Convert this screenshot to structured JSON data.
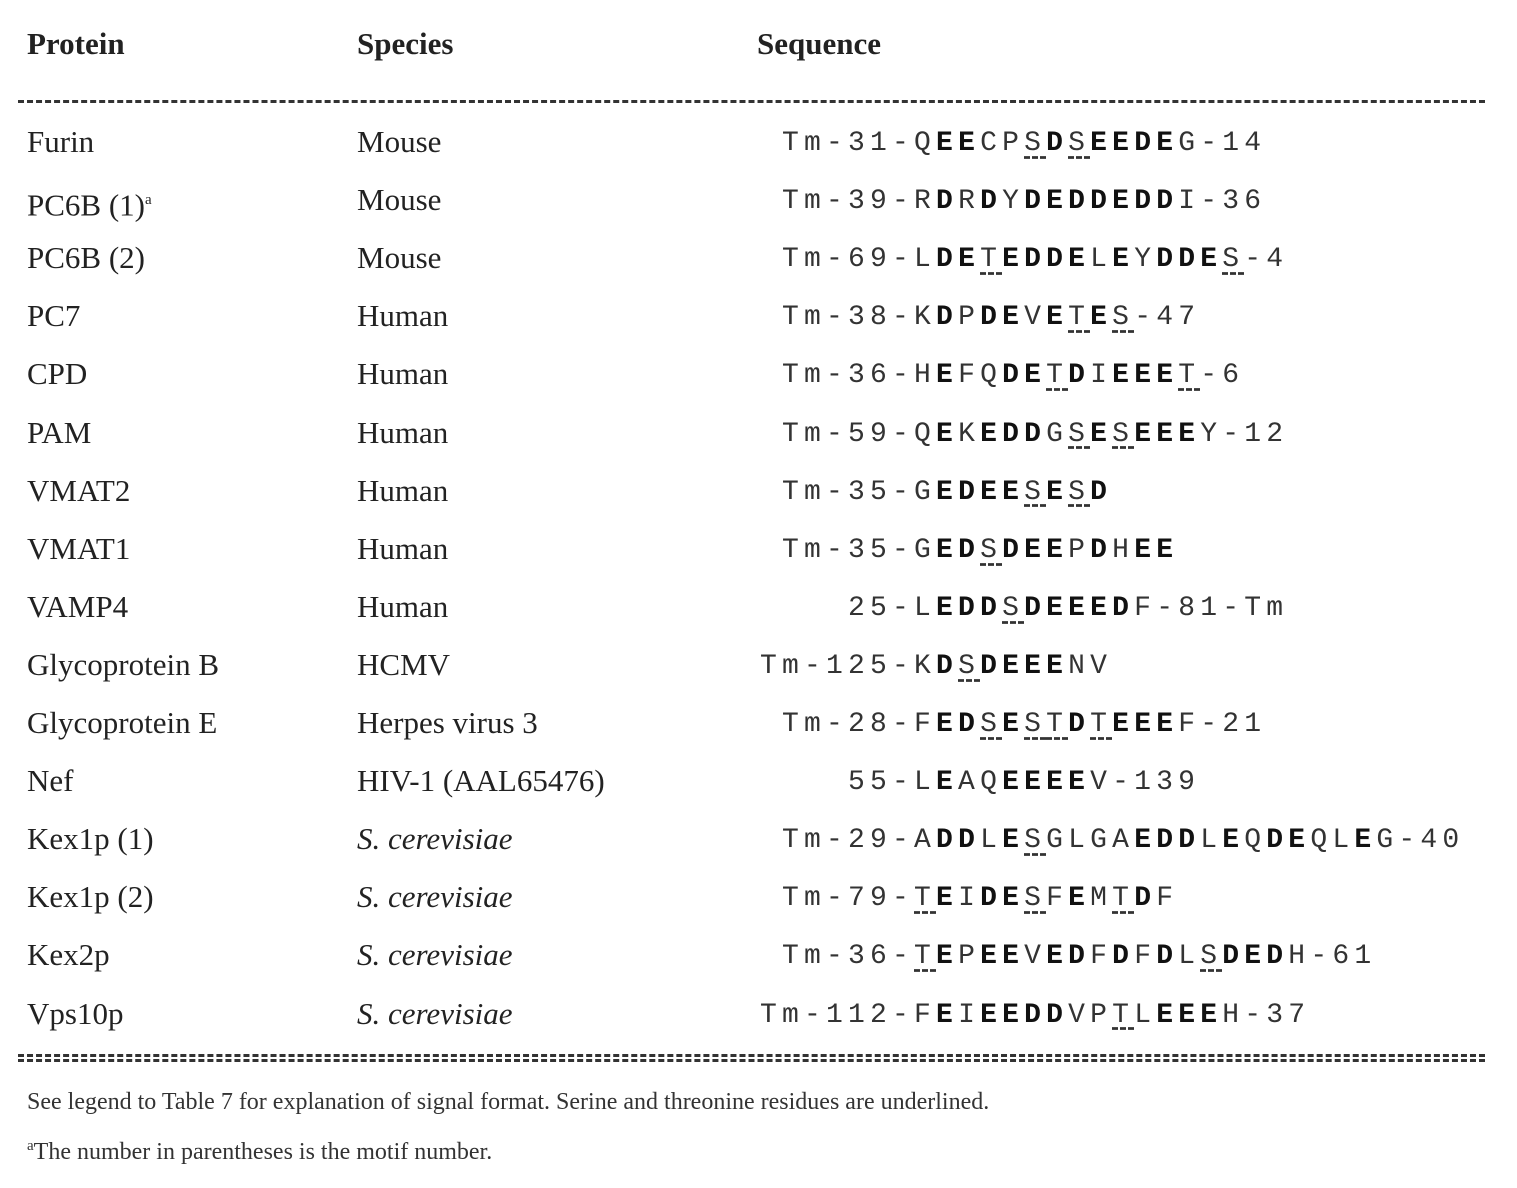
{
  "header": {
    "columns": [
      "Protein",
      "Species",
      "Sequence"
    ]
  },
  "table": {
    "rows": [
      {
        "protein": "Furin",
        "species": "Mouse",
        "sequence": "Tm-31-QEECPSDSEEDEG-14"
      },
      {
        "protein": "PC6B (1)",
        "note_marker": "a",
        "species": "Mouse",
        "sequence": "Tm-39-RDRDYDEDDEDDI-36"
      },
      {
        "protein": "PC6B (2)",
        "species": "Mouse",
        "sequence": "Tm-69-LDETEDDELEYDDES-4"
      },
      {
        "protein": "PC7",
        "species": "Human",
        "sequence": "Tm-38-KDPDEVETES-47"
      },
      {
        "protein": "CPD",
        "species": "Human",
        "sequence": "Tm-36-HEFQDETDIEEET-6"
      },
      {
        "protein": "PAM",
        "species": "Human",
        "sequence": "Tm-59-QEKEDDGSESEEEY-12"
      },
      {
        "protein": "VMAT2",
        "species": "Human",
        "sequence": "Tm-35-GEDEESESD"
      },
      {
        "protein": "VMAT1",
        "species": "Human",
        "sequence": "Tm-35-GEDSDEEPDHEE"
      },
      {
        "protein": "VAMP4",
        "species": "Human",
        "sequence": "25-LEDDSDEEEDF-81-Tm"
      },
      {
        "protein": "Glycoprotein B",
        "species": "HCMV",
        "sequence": "Tm-125-KDSDEEENV"
      },
      {
        "protein": "Glycoprotein E",
        "species": "Herpes virus 3",
        "sequence": "Tm-28-FEDSESTDTEEEF-21"
      },
      {
        "protein": "Nef",
        "species": "HIV-1 (AAL65476)",
        "sequence": "55-LEAQEEEEV-139"
      },
      {
        "protein": "Kex1p (1)",
        "species": "S. cerevisiae",
        "italic": true,
        "sequence": "Tm-29-ADDLESGLGAEDDLEQDEQLEG-40"
      },
      {
        "protein": "Kex1p (2)",
        "species": "S. cerevisiae",
        "italic": true,
        "sequence": "Tm-79-TEIDESFEMTDF"
      },
      {
        "protein": "Kex2p",
        "species": "S. cerevisiae",
        "italic": true,
        "sequence": "Tm-36-TEPEEVEDFDFDLSDEDH-61"
      },
      {
        "protein": "Vps10p",
        "species": "S. cerevisiae",
        "italic": true,
        "sequence": "Tm-112-FEIEEDDVPTLEEEH-37"
      }
    ]
  },
  "footnotes": {
    "legend": "See legend to Table 7 for explanation of signal format. Serine and threonine residues are underlined.",
    "marker": "a",
    "text": "The number in parentheses is the motif number."
  }
}
